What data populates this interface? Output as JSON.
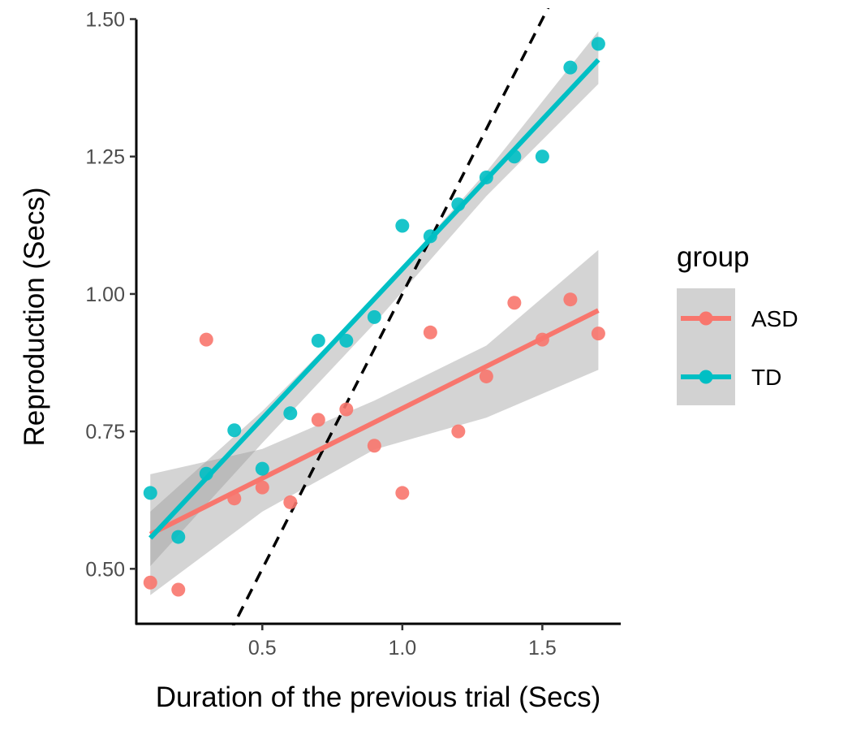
{
  "chart_data": {
    "type": "scatter",
    "title": "",
    "xlabel": "Duration of the previous trial (Secs)",
    "ylabel": "Reproduction (Secs)",
    "xlim": [
      0.05,
      1.78
    ],
    "ylim": [
      0.4,
      1.52
    ],
    "xticks": [
      0.5,
      1.0,
      1.5
    ],
    "xtick_labels": [
      "0.5",
      "1.0",
      "1.5"
    ],
    "yticks": [
      0.5,
      0.75,
      1.0,
      1.25,
      1.5
    ],
    "ytick_labels": [
      "0.50",
      "0.75",
      "1.00",
      "1.25",
      "1.50"
    ],
    "grid": false,
    "legend": {
      "title": "group",
      "position": "right",
      "entries": [
        "ASD",
        "TD"
      ]
    },
    "reference_line": {
      "style": "dashed",
      "color": "#000000",
      "slope": 1.0,
      "intercept": 0.0,
      "description": "identity y = x"
    },
    "series": [
      {
        "name": "ASD",
        "color": "#F8766D",
        "x": [
          0.1,
          0.2,
          0.3,
          0.4,
          0.5,
          0.6,
          0.7,
          0.8,
          0.9,
          1.0,
          1.1,
          1.2,
          1.3,
          1.4,
          1.5,
          1.6,
          1.7
        ],
        "y": [
          0.475,
          0.462,
          0.917,
          0.628,
          0.648,
          0.621,
          0.771,
          0.79,
          0.724,
          0.638,
          0.93,
          0.75,
          0.85,
          0.984,
          0.917,
          0.99,
          0.928
        ],
        "fit": {
          "x0": 0.1,
          "y0": 0.563,
          "x1": 1.7,
          "y1": 0.97
        },
        "ci": {
          "x": [
            0.1,
            0.5,
            0.9,
            1.3,
            1.7
          ],
          "lower": [
            0.452,
            0.604,
            0.717,
            0.775,
            0.862
          ],
          "upper": [
            0.672,
            0.718,
            0.806,
            0.906,
            1.08
          ]
        }
      },
      {
        "name": "TD",
        "color": "#00BFC4",
        "x": [
          0.1,
          0.2,
          0.3,
          0.4,
          0.5,
          0.6,
          0.7,
          0.8,
          0.9,
          1.0,
          1.1,
          1.2,
          1.3,
          1.4,
          1.5,
          1.6,
          1.7
        ],
        "y": [
          0.638,
          0.558,
          0.673,
          0.752,
          0.682,
          0.783,
          0.915,
          0.915,
          0.958,
          1.124,
          1.105,
          1.163,
          1.212,
          1.25,
          1.25,
          1.412,
          1.455
        ],
        "fit": {
          "x0": 0.1,
          "y0": 0.556,
          "x1": 1.7,
          "y1": 1.426
        },
        "ci": {
          "x": [
            0.1,
            0.5,
            0.9,
            1.3,
            1.7
          ],
          "lower": [
            0.505,
            0.729,
            0.946,
            1.178,
            1.382
          ],
          "upper": [
            0.604,
            0.787,
            0.992,
            1.222,
            1.478
          ]
        }
      }
    ]
  }
}
